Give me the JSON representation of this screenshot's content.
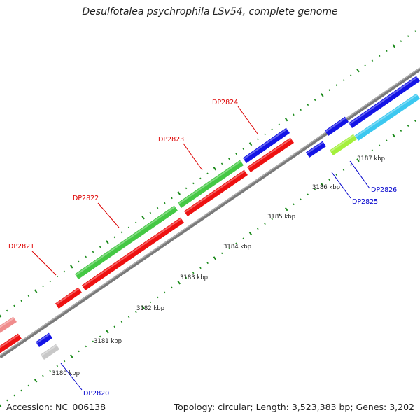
{
  "title": "Desulfotalea psychrophila LSv54, complete genome",
  "footer": {
    "accession": "Accession: NC_006138",
    "summary": "Topology: circular; Length: 3,523,383 bp; Genes: 3,202"
  },
  "colors": {
    "backbone": "#8c8c8c",
    "tick": "#1a8a1a",
    "gene_red": "#ee1111",
    "gene_green": "#44c844",
    "gene_blue": "#1414e6",
    "gene_cyan": "#3cc8f0",
    "gene_lime": "#a4f03c",
    "gene_gray": "#c8c8c8",
    "gene_pink": "#f08c8c",
    "label_red": "#dd0000",
    "label_blue": "#0000cc"
  },
  "kbp_labels": [
    "3180 kbp",
    "3181 kbp",
    "3182 kbp",
    "3183 kbp",
    "3184 kbp",
    "3185 kbp",
    "3186 kbp",
    "3187 kbp"
  ],
  "gene_labels": [
    "DP2820",
    "DP2821",
    "DP2822",
    "DP2823",
    "DP2824",
    "DP2825",
    "DP2826"
  ]
}
